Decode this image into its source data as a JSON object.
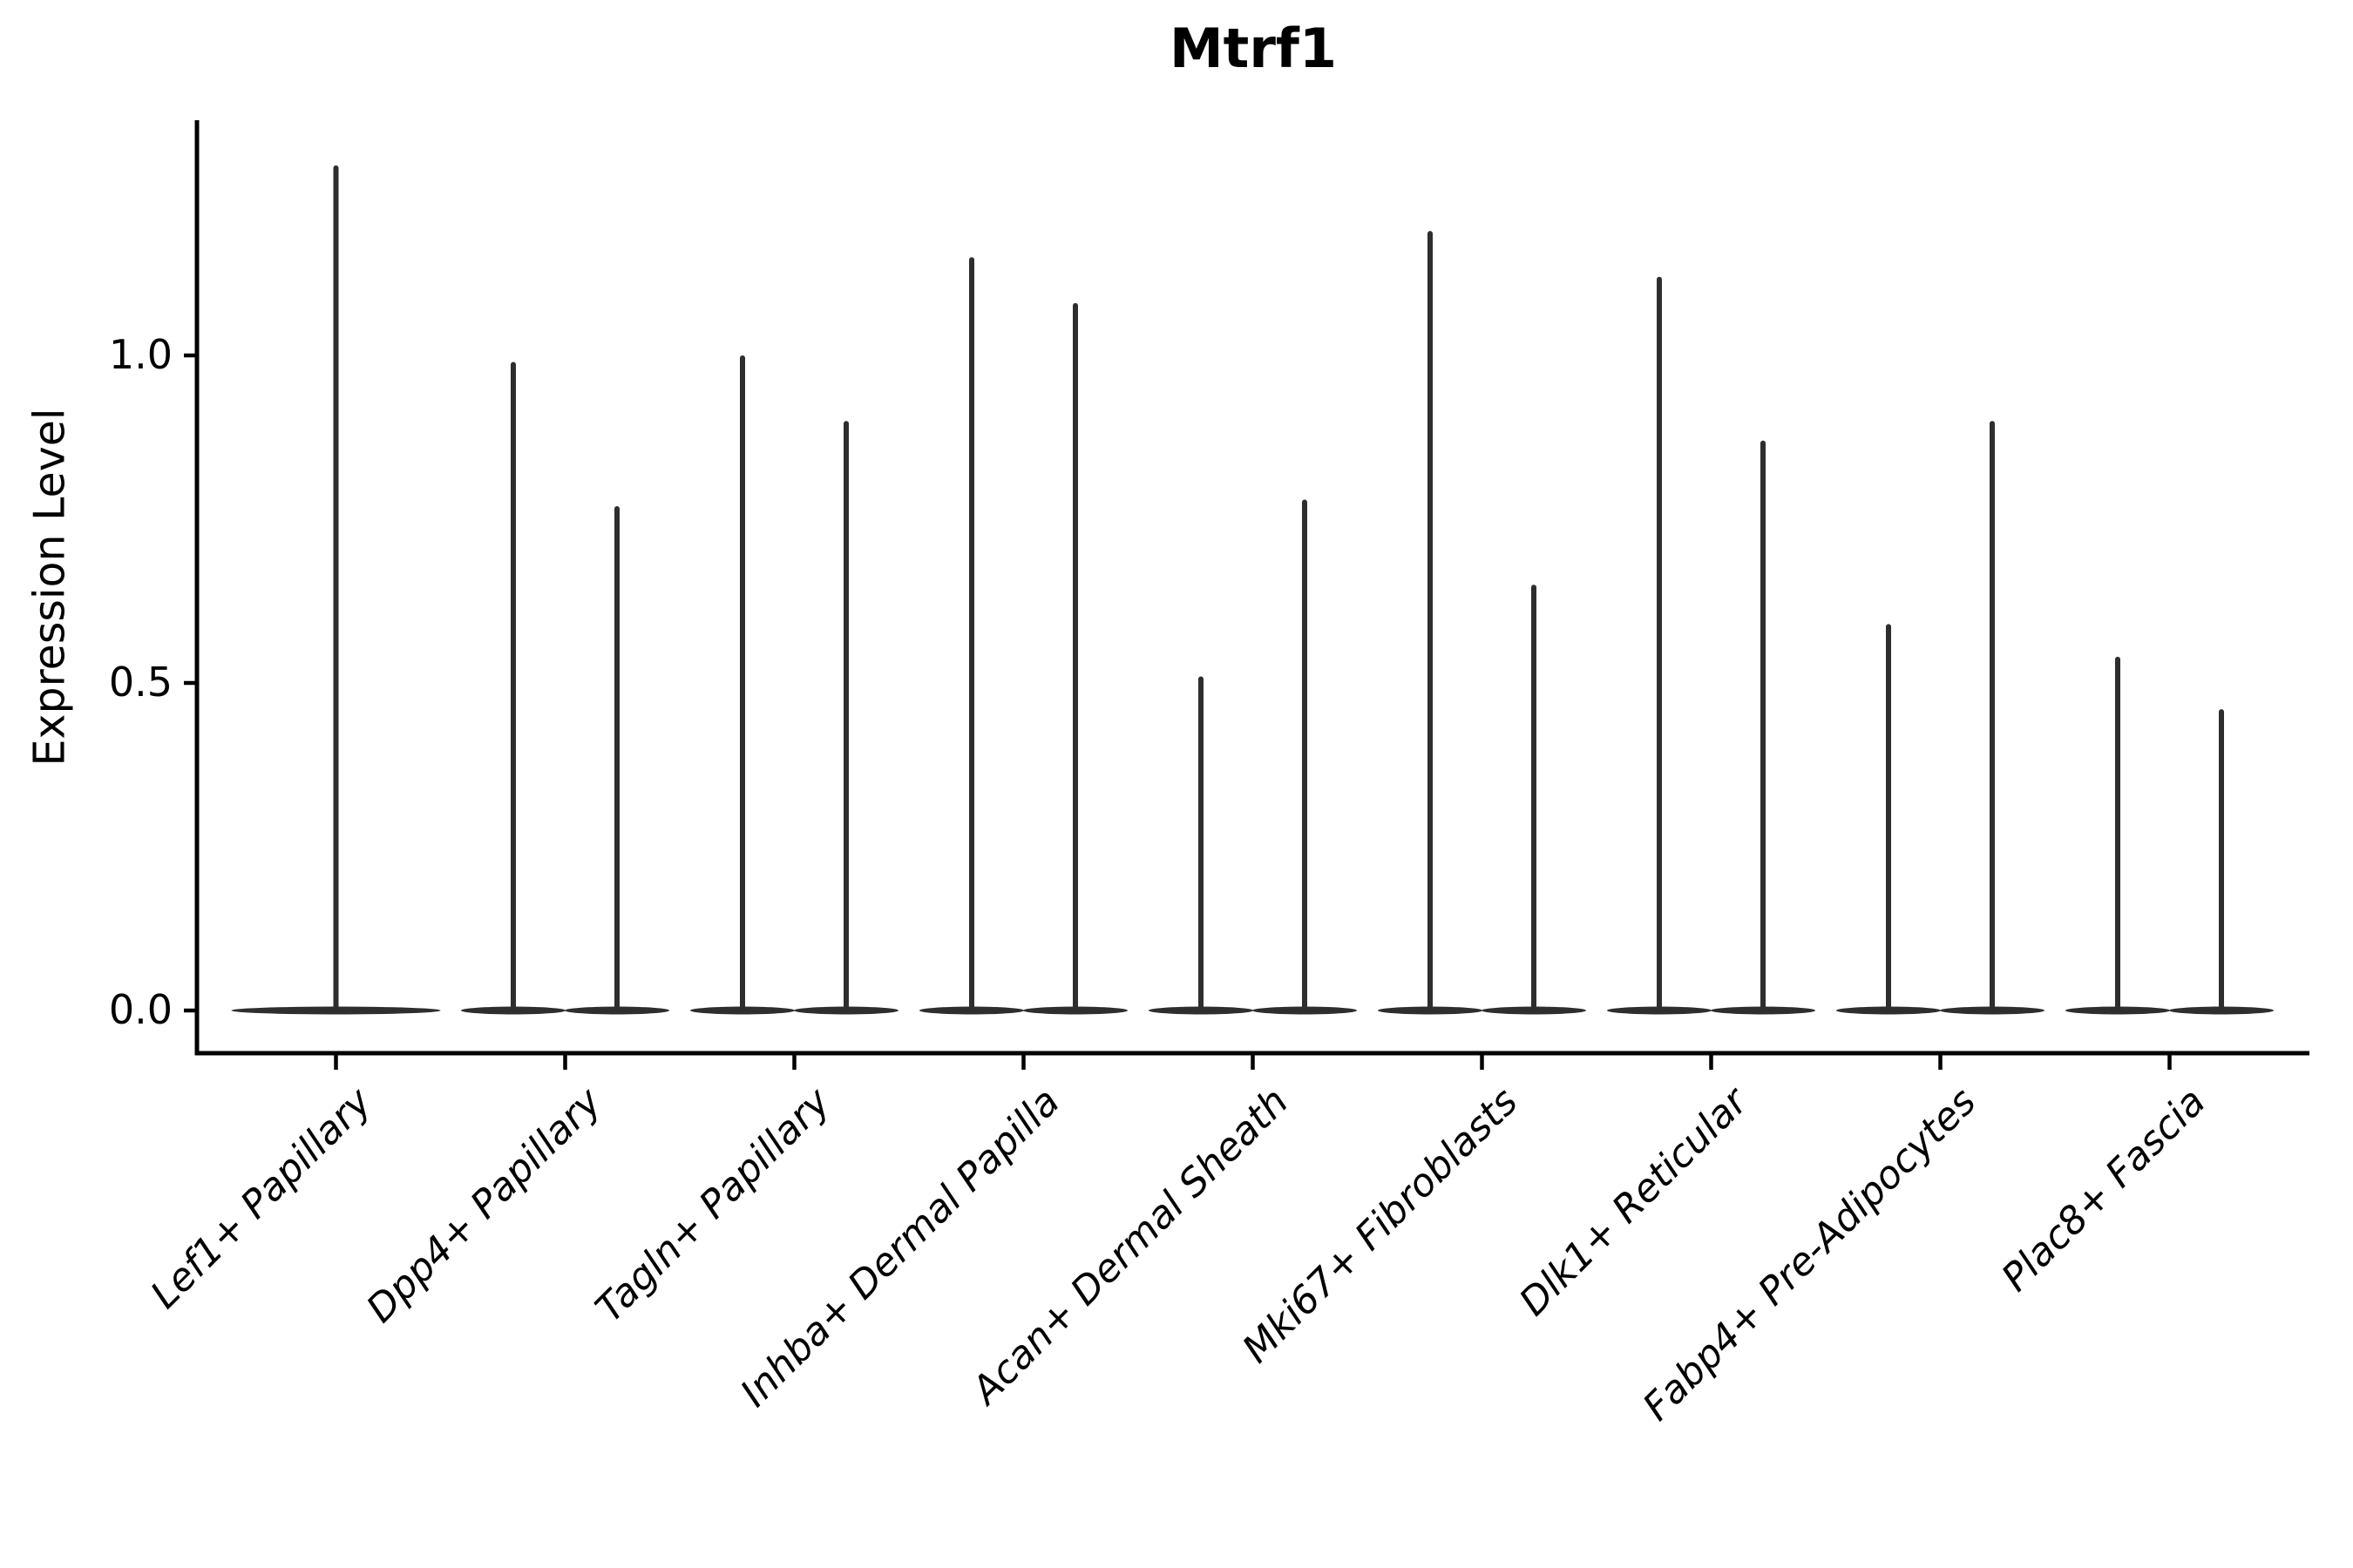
{
  "chart_data": {
    "type": "violin",
    "title": "Mtrf1",
    "ylabel": "Expression Level",
    "xlabel": "",
    "ylim": [
      0,
      1.36
    ],
    "yticks": [
      0.0,
      0.5,
      1.0
    ],
    "ytick_labels": [
      "0.0",
      "0.5",
      "1.0"
    ],
    "grid": false,
    "legend": "none",
    "x_label_rotation_deg": 45,
    "x_label_style": "italic",
    "categories": [
      {
        "label": "Lef1+ Papillary",
        "violin_max": [
          1.29
        ]
      },
      {
        "label": "Dpp4+ Papillary",
        "violin_max": [
          0.99,
          0.77
        ]
      },
      {
        "label": "Tagln+ Papillary",
        "violin_max": [
          1.0,
          0.9
        ]
      },
      {
        "label": "Inhba+ Dermal Papilla",
        "violin_max": [
          1.15,
          1.08
        ]
      },
      {
        "label": "Acan+ Dermal Sheath",
        "violin_max": [
          0.51,
          0.78
        ]
      },
      {
        "label": "Mki67+ Fibroblasts",
        "violin_max": [
          1.19,
          0.65
        ]
      },
      {
        "label": "Dlk1+ Reticular",
        "violin_max": [
          1.12,
          0.87
        ]
      },
      {
        "label": "Fabp4+ Pre-Adipocytes",
        "violin_max": [
          0.59,
          0.9
        ]
      },
      {
        "label": "Plac8+ Fascia",
        "violin_max": [
          0.54,
          0.46
        ]
      }
    ],
    "colors": {
      "violin": "#2e2e2e",
      "axis": "#000000",
      "text": "#000000",
      "background": "#ffffff"
    }
  }
}
